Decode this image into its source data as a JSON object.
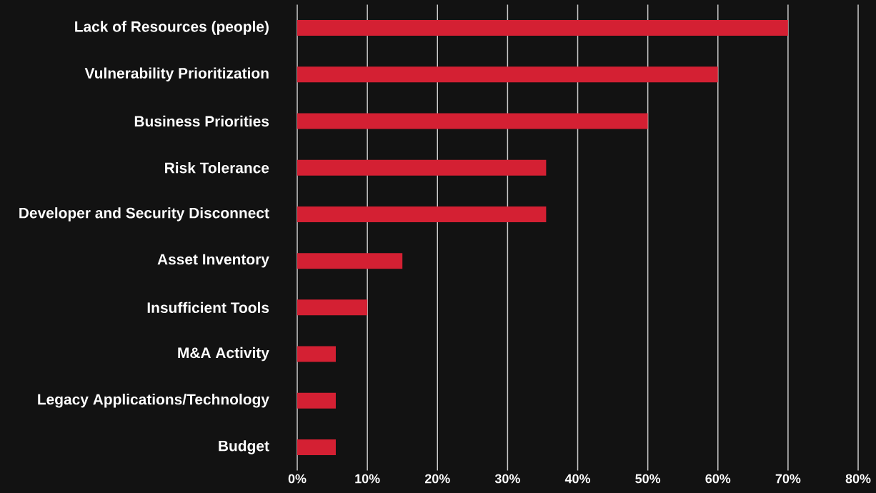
{
  "chart_data": {
    "type": "bar",
    "orientation": "horizontal",
    "categories": [
      "Lack of Resources (people)",
      "Vulnerability Prioritization",
      "Business Priorities",
      "Risk Tolerance",
      "Developer and Security Disconnect",
      "Asset Inventory",
      "Insufficient Tools",
      "M&A Activity",
      "Legacy Applications/Technology",
      "Budget"
    ],
    "values": [
      70,
      60,
      50,
      35.5,
      35.5,
      15,
      10,
      5.5,
      5.5,
      5.5
    ],
    "color": "#d42033",
    "xlim": [
      0,
      80
    ],
    "xticks": [
      {
        "value": 0,
        "label": "0%"
      },
      {
        "value": 10,
        "label": "10%"
      },
      {
        "value": 20,
        "label": "20%"
      },
      {
        "value": 30,
        "label": "30%"
      },
      {
        "value": 40,
        "label": "40%"
      },
      {
        "value": 50,
        "label": "50%"
      },
      {
        "value": 60,
        "label": "60%"
      },
      {
        "value": 70,
        "label": "70%"
      },
      {
        "value": 80,
        "label": "80%"
      }
    ],
    "grid": "x"
  }
}
